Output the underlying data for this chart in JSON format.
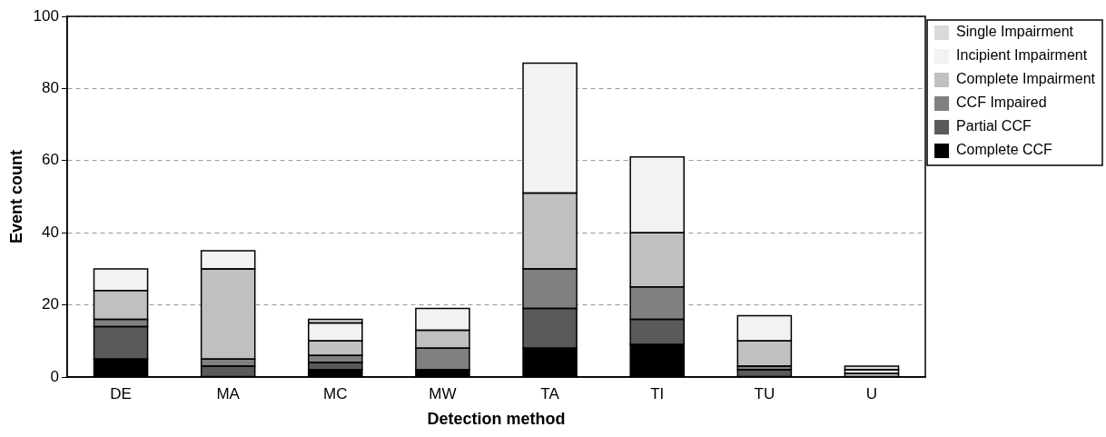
{
  "chart_data": {
    "type": "bar",
    "stacked": true,
    "xlabel": "Detection method",
    "ylabel": "Event count",
    "categories": [
      "DE",
      "MA",
      "MC",
      "MW",
      "TA",
      "TI",
      "TU",
      "U"
    ],
    "series": [
      {
        "name": "Complete CCF",
        "color": "#000000",
        "values": [
          5,
          0,
          2,
          2,
          8,
          9,
          0,
          0
        ]
      },
      {
        "name": "Partial CCF",
        "color": "#5a5a5a",
        "values": [
          9,
          3,
          2,
          0,
          11,
          7,
          2,
          0
        ]
      },
      {
        "name": "CCF Impaired",
        "color": "#808080",
        "values": [
          2,
          2,
          2,
          6,
          11,
          9,
          1,
          0
        ]
      },
      {
        "name": "Complete Impairment",
        "color": "#c0c0c0",
        "values": [
          8,
          25,
          4,
          5,
          21,
          15,
          7,
          1
        ]
      },
      {
        "name": "Incipient Impairment",
        "color": "#f2f2f2",
        "values": [
          6,
          5,
          5,
          6,
          36,
          21,
          7,
          1
        ]
      },
      {
        "name": "Single Impairment",
        "color": "#d9d9d9",
        "values": [
          0,
          0,
          1,
          0,
          0,
          0,
          0,
          1
        ]
      }
    ],
    "ylim": [
      0,
      100
    ],
    "yticks": [
      0,
      20,
      40,
      60,
      80,
      100
    ],
    "grid": "y",
    "legend": "right"
  }
}
